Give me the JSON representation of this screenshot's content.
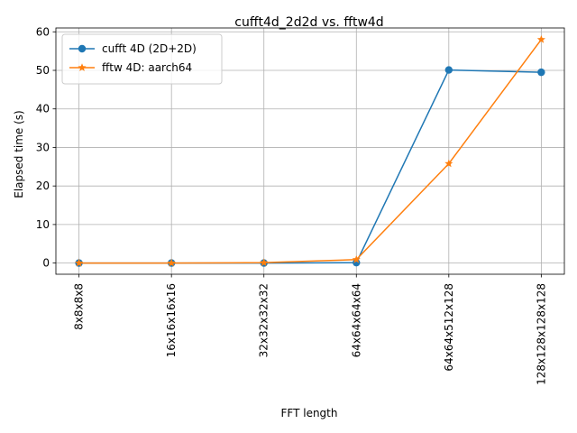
{
  "chart_data": {
    "type": "line",
    "title": "cufft4d_2d2d vs. fftw4d",
    "xlabel": "FFT length",
    "ylabel": "Elapsed time (s)",
    "categories": [
      "8x8x8x8",
      "16x16x16x16",
      "32x32x32x32",
      "64x64x64x64",
      "64x64x512x128",
      "128x128x128x128"
    ],
    "ylim": [
      -2.9,
      61
    ],
    "yticks": [
      0,
      10,
      20,
      30,
      40,
      50,
      60
    ],
    "grid": true,
    "legend_position": "upper-left",
    "series": [
      {
        "name": "cufft 4D (2D+2D)",
        "marker": "circle",
        "color": "#1f77b4",
        "values": [
          0.0,
          0.0,
          0.0,
          0.1,
          50.1,
          49.5
        ]
      },
      {
        "name": "fftw 4D: aarch64",
        "marker": "star",
        "color": "#ff7f0e",
        "values": [
          0.0,
          0.0,
          0.1,
          0.9,
          25.8,
          58.0
        ]
      }
    ]
  }
}
